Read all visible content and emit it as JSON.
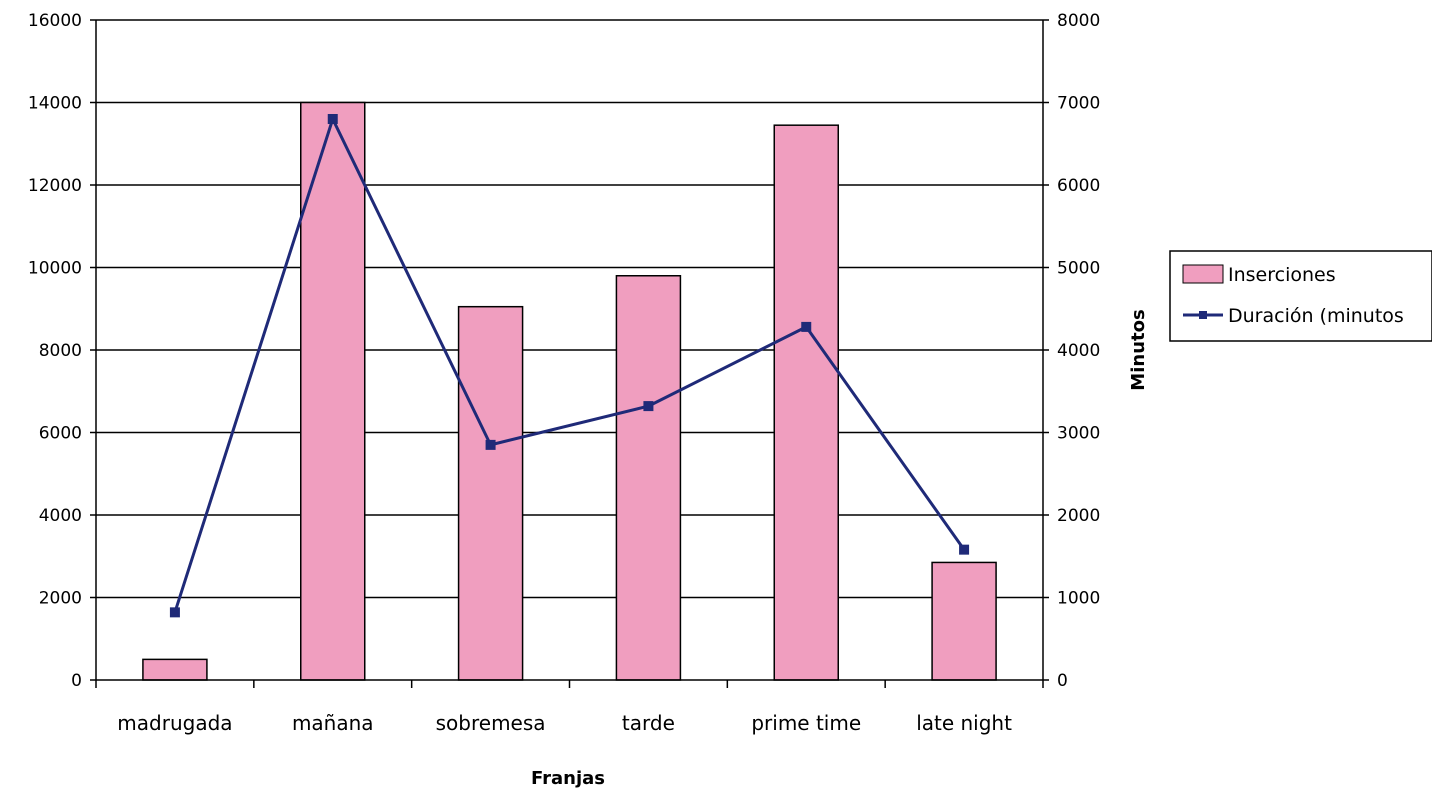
{
  "chart_data": {
    "type": "bar",
    "categories": [
      "madrugada",
      "mañana",
      "sobremesa",
      "tarde",
      "prime time",
      "late night"
    ],
    "series": [
      {
        "name": "Inserciones",
        "type": "bar",
        "axis": "left",
        "color": "#f09ebf",
        "values": [
          500,
          14000,
          9050,
          9800,
          13450,
          2850
        ]
      },
      {
        "name": "Duración (minutos",
        "type": "line",
        "axis": "right",
        "color": "#1f2a78",
        "values": [
          820,
          6800,
          2850,
          3320,
          4280,
          1580
        ]
      }
    ],
    "xlabel": "Franjas",
    "ylabel": "",
    "y2label": "Minutos",
    "ylim": [
      0,
      16000
    ],
    "y2lim": [
      0,
      8000
    ],
    "yticks": [
      "0",
      "2000",
      "4000",
      "6000",
      "8000",
      "10000",
      "12000",
      "14000",
      "16000"
    ],
    "y2ticks": [
      "0",
      "1000",
      "2000",
      "3000",
      "4000",
      "5000",
      "6000",
      "7000",
      "8000"
    ],
    "grid": true,
    "legend": "right"
  }
}
